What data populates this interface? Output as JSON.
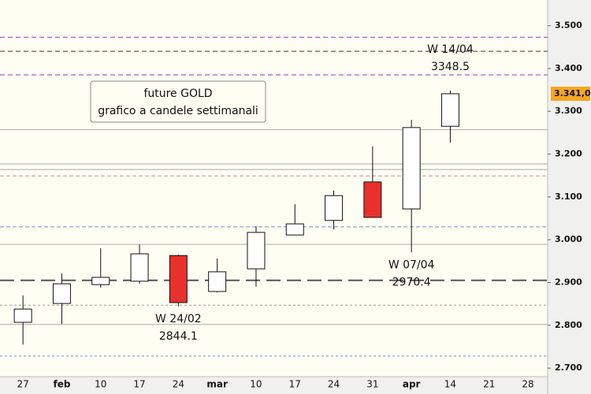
{
  "chart_data": {
    "type": "candlestick",
    "title": "future GOLD",
    "subtitle": "grafico a candele settimanali",
    "categories": [
      "27",
      "feb",
      "10",
      "17",
      "24",
      "mar",
      "10",
      "17",
      "24",
      "31",
      "apr",
      "14",
      "21",
      "28"
    ],
    "open": [
      2807,
      2851,
      2895,
      2903,
      2963,
      2879,
      2932,
      3011,
      3045,
      3135,
      3072,
      3265,
      null,
      null
    ],
    "high": [
      2870,
      2921,
      2980,
      2989,
      2965,
      2956,
      3032,
      3083,
      3115,
      3218,
      3280,
      3348.5,
      null,
      null
    ],
    "low": [
      2755,
      2803,
      2888,
      2897,
      2844.1,
      2877,
      2890,
      3011,
      3024,
      3052,
      2970.4,
      3227,
      null,
      null
    ],
    "close": [
      2838,
      2897,
      2912,
      2967,
      2853,
      2925,
      3017,
      3037,
      3103,
      3052,
      3262,
      3341,
      null,
      null
    ],
    "up_color": "#ffffff",
    "down_color": "#e8302c",
    "ylim": [
      2680,
      3560
    ],
    "yticks": [
      {
        "value": 2700,
        "label": "2.700"
      },
      {
        "value": 2800,
        "label": "2.800"
      },
      {
        "value": 2900,
        "label": "2.900"
      },
      {
        "value": 3000,
        "label": "3.000"
      },
      {
        "value": 3100,
        "label": "3.100"
      },
      {
        "value": 3200,
        "label": "3.200"
      },
      {
        "value": 3300,
        "label": "3.300"
      },
      {
        "value": 3400,
        "label": "3.400"
      },
      {
        "value": 3500,
        "label": "3.500"
      }
    ],
    "last_price": {
      "value": 3341,
      "label": "3.341,0"
    },
    "annotations": [
      {
        "text": "W 14/04",
        "value": 3348.5
      },
      {
        "text": "W 07/04",
        "value": 2970.4
      },
      {
        "text": "W 24/02",
        "value": 2844.1
      }
    ],
    "reference_lines": [
      {
        "value": 3473,
        "color": "#9b30d0",
        "dash": "6,4"
      },
      {
        "value": 3440,
        "color": "#333333",
        "dash": "6,4"
      },
      {
        "value": 3385,
        "color": "#9b30d0",
        "dash": "6,4"
      },
      {
        "value": 3257,
        "color": "#aaaaaa",
        "dash": "none"
      },
      {
        "value": 3177,
        "color": "#aaaaaa",
        "dash": "none"
      },
      {
        "value": 3164,
        "color": "#aaaaaa",
        "dash": "none"
      },
      {
        "value": 3149,
        "color": "#e08090",
        "dash": "5,3"
      },
      {
        "value": 3030,
        "color": "#6a8fd8",
        "dash": "5,3"
      },
      {
        "value": 2989,
        "color": "#aaaaaa",
        "dash": "none"
      },
      {
        "value": 2905,
        "color": "#555555",
        "dash": "18,8"
      },
      {
        "value": 2847,
        "color": "#999999",
        "dash": "3,3"
      },
      {
        "value": 2802,
        "color": "#aaaaaa",
        "dash": "none"
      },
      {
        "value": 2728,
        "color": "#6a8fd8",
        "dash": "3,3"
      }
    ],
    "grid": false
  }
}
